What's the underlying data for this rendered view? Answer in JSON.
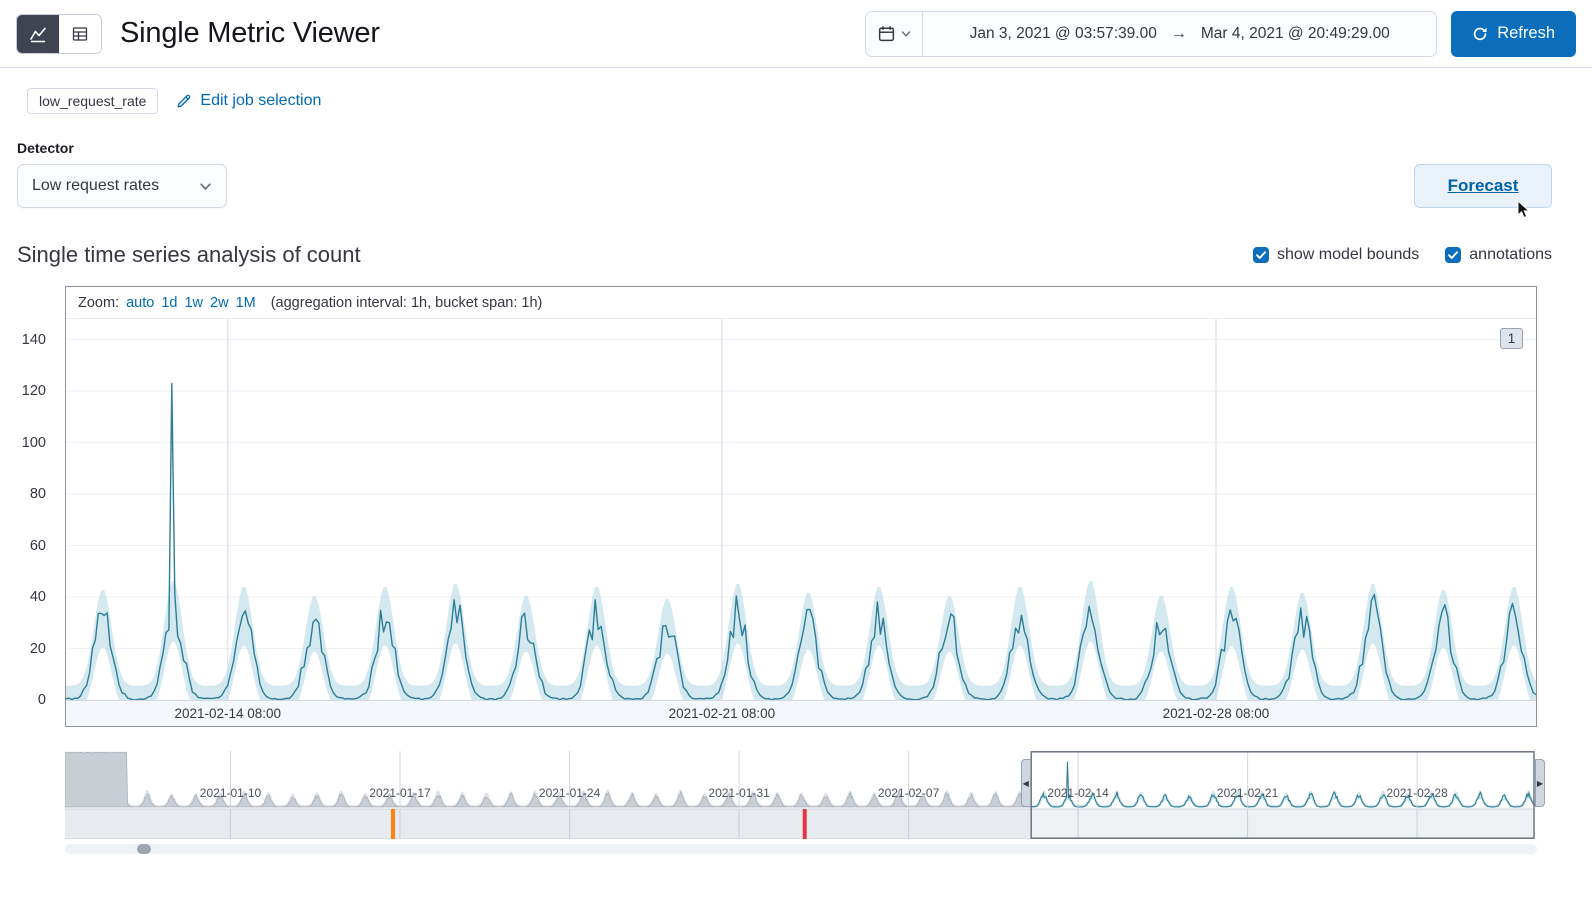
{
  "colors": {
    "primary": "#0a6ebd",
    "link": "#006bb4",
    "text": "#343741",
    "line": "#2e7d96",
    "band": "#b5d8e4",
    "context_area": "#c9cdd4",
    "context_band": "#dde0e5",
    "grid": "#d3dae6",
    "marker_orange": "#f98510",
    "marker_red": "#e0383e"
  },
  "header": {
    "title": "Single Metric Viewer",
    "views": [
      {
        "name": "chart",
        "selected": true
      },
      {
        "name": "table",
        "selected": false
      }
    ],
    "date_picker": {
      "start": "Jan 3, 2021 @ 03:57:39.00",
      "arrow": "→",
      "end": "Mar 4, 2021 @ 20:49:29.00"
    },
    "refresh_label": "Refresh"
  },
  "job_bar": {
    "job_badge": "low_request_rate",
    "edit_link": "Edit job selection"
  },
  "detector": {
    "label": "Detector",
    "selected_option": "Low request rates"
  },
  "forecast_label": "Forecast",
  "series_header": {
    "title": "Single time series analysis of count",
    "checkboxes": [
      {
        "label": "show model bounds",
        "checked": true
      },
      {
        "label": "annotations",
        "checked": true
      }
    ]
  },
  "zoom_bar": {
    "label": "Zoom:",
    "options": [
      "auto",
      "1d",
      "1w",
      "2w",
      "1M"
    ],
    "detail": "(aggregation interval: 1h, bucket span: 1h)"
  },
  "annotation_badge": "1",
  "chart_data": {
    "type": "line",
    "title": "Single time series analysis of count",
    "ylabel": "count",
    "ylim": [
      0,
      148
    ],
    "yticks": [
      0,
      20,
      40,
      60,
      80,
      100,
      120,
      140
    ],
    "focus": {
      "start": "2021-02-12 01:00",
      "end": "2021-03-04 20:49",
      "xticks": [
        {
          "label": "2021-02-14 08:00",
          "time": "2021-02-14 08:00"
        },
        {
          "label": "2021-02-21 08:00",
          "time": "2021-02-21 08:00"
        },
        {
          "label": "2021-02-28 08:00",
          "time": "2021-02-28 08:00"
        }
      ],
      "series_name": "count",
      "bounds_name": "model bounds",
      "daily_peak_values": [
        32,
        35,
        33,
        30,
        33,
        34,
        30,
        33,
        29,
        34,
        31,
        33,
        30,
        33,
        35,
        30,
        33,
        31,
        34,
        32,
        33
      ],
      "anomaly_spike": {
        "time": "2021-02-13 13:00",
        "value": 123
      }
    },
    "context": {
      "start": "2021-01-03 03:57",
      "end": "2021-03-04 20:49",
      "selection_start": "2021-02-12 01:00",
      "xticks": [
        {
          "label": "2021-01-10",
          "time": "2021-01-10 00:00"
        },
        {
          "label": "2021-01-17",
          "time": "2021-01-17 00:00"
        },
        {
          "label": "2021-01-24",
          "time": "2021-01-24 00:00"
        },
        {
          "label": "2021-01-31",
          "time": "2021-01-31 00:00"
        },
        {
          "label": "2021-02-07",
          "time": "2021-02-07 00:00"
        },
        {
          "label": "2021-02-14",
          "time": "2021-02-14 00:00"
        },
        {
          "label": "2021-02-21",
          "time": "2021-02-21 00:00"
        },
        {
          "label": "2021-02-28",
          "time": "2021-02-28 00:00"
        }
      ],
      "high_plateau": {
        "until": "2021-01-05 17:00",
        "value": 146
      },
      "anomaly_markers": [
        {
          "time": "2021-01-16 17:00",
          "severity": "major",
          "color": "#f98510"
        },
        {
          "time": "2021-02-02 17:00",
          "severity": "critical",
          "color": "#e0383e"
        }
      ]
    }
  }
}
